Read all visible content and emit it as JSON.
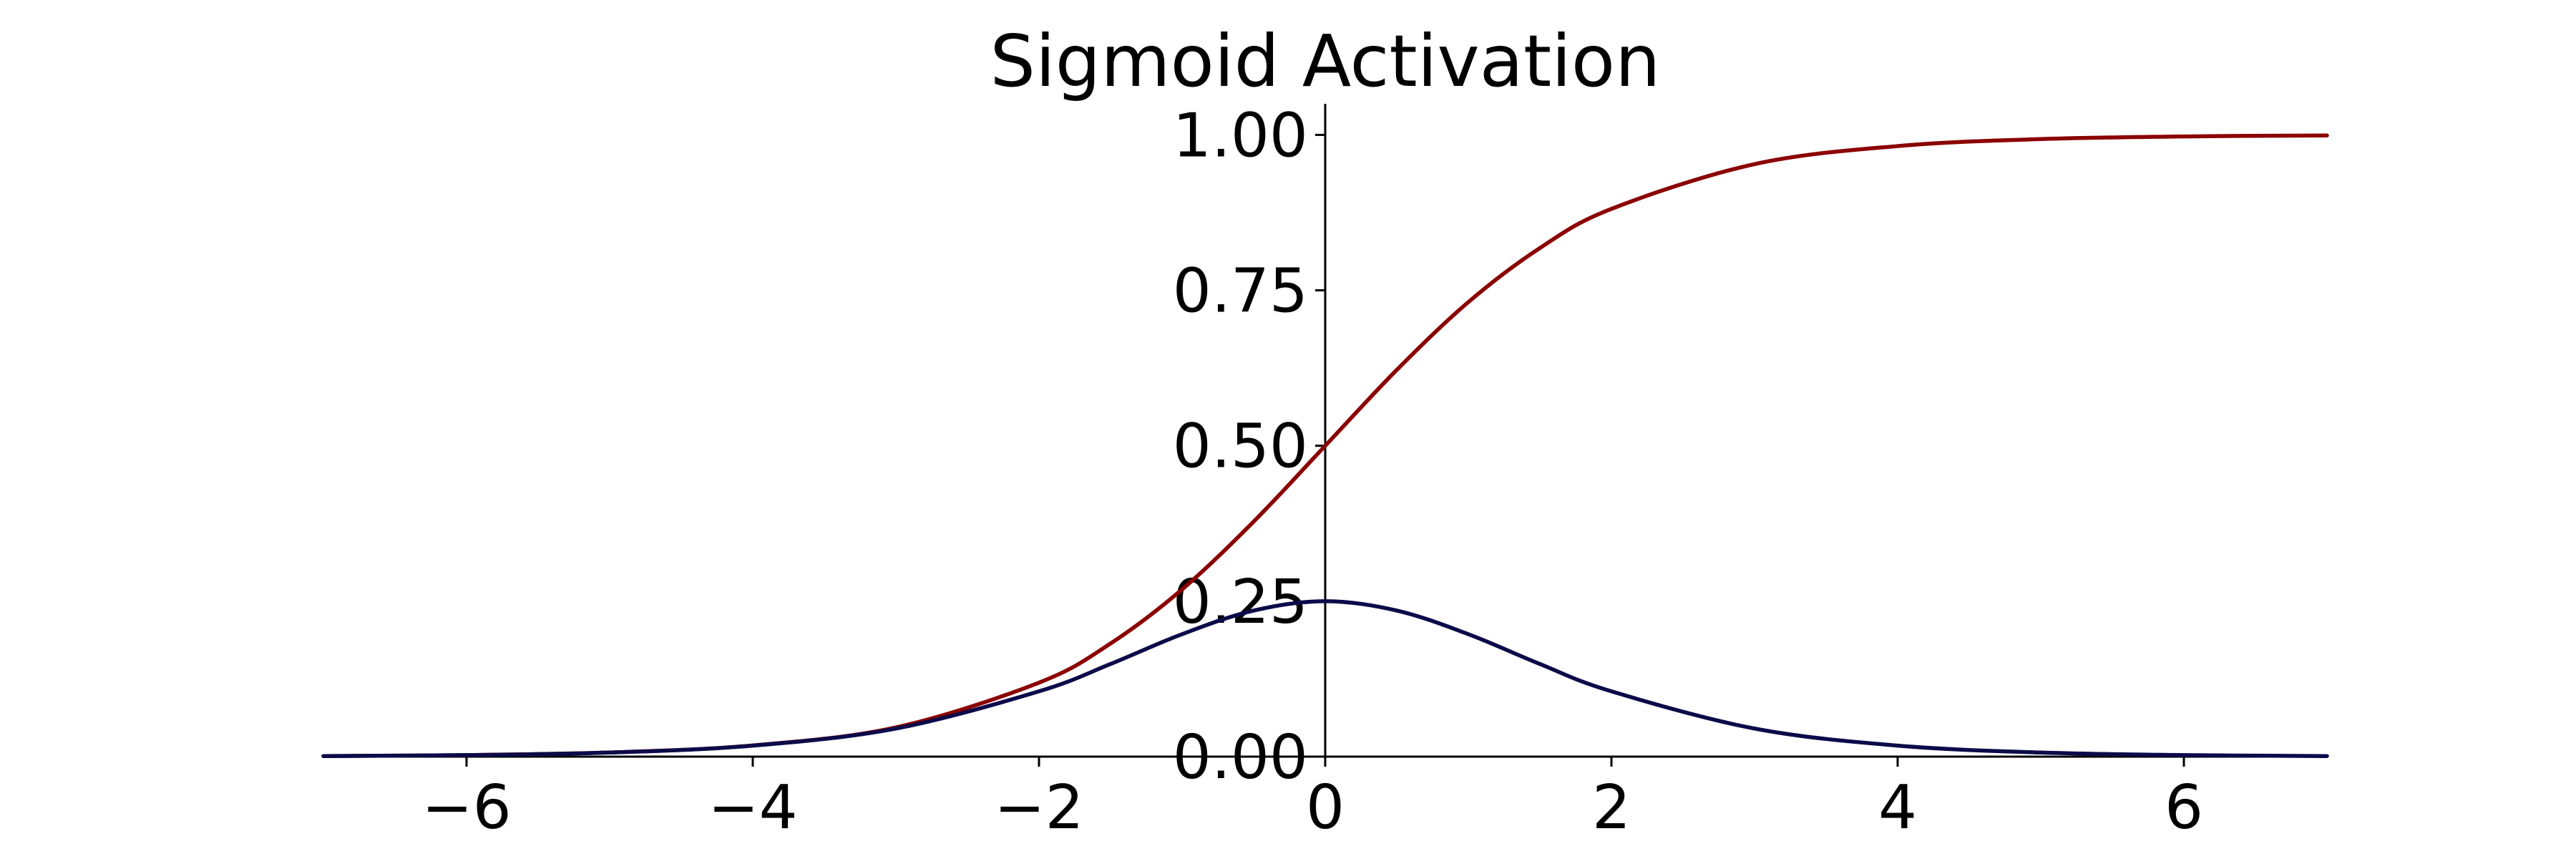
{
  "chart_data": {
    "type": "line",
    "title": "Sigmoid Activation",
    "xlabel": "",
    "ylabel": "",
    "xlim": [
      -7,
      7
    ],
    "ylim": [
      0,
      1.05
    ],
    "x_ticks": [
      -6,
      -4,
      -2,
      0,
      2,
      4,
      6
    ],
    "x_tick_labels": [
      "−6",
      "−4",
      "−2",
      "0",
      "2",
      "4",
      "6"
    ],
    "y_ticks": [
      0,
      0.25,
      0.5,
      0.75,
      1.0
    ],
    "y_tick_labels": [
      "0.00",
      "0.25",
      "0.50",
      "0.75",
      "1.00"
    ],
    "grid": false,
    "spines": "centered-y-axis, bottom-x-axis",
    "series": [
      {
        "color": "#8b0000",
        "x": [
          -7,
          -6,
          -5,
          -4,
          -3,
          -2,
          -1.5,
          -1,
          -0.5,
          0,
          0.5,
          1,
          1.5,
          2,
          3,
          4,
          5,
          6,
          7
        ],
        "y": [
          0.0009,
          0.0025,
          0.0067,
          0.018,
          0.047,
          0.119,
          0.182,
          0.269,
          0.378,
          0.5,
          0.622,
          0.731,
          0.818,
          0.881,
          0.953,
          0.982,
          0.9933,
          0.9975,
          0.9991
        ]
      },
      {
        "color": "#0b0b4a",
        "x": [
          -7,
          -6,
          -5,
          -4,
          -3,
          -2,
          -1.5,
          -1,
          -0.5,
          0,
          0.5,
          1,
          1.5,
          2,
          3,
          4,
          5,
          6,
          7
        ],
        "y": [
          0.0009,
          0.0025,
          0.0066,
          0.0177,
          0.0452,
          0.105,
          0.149,
          0.197,
          0.235,
          0.25,
          0.235,
          0.197,
          0.149,
          0.105,
          0.0452,
          0.0177,
          0.0066,
          0.0025,
          0.0009
        ]
      }
    ]
  }
}
